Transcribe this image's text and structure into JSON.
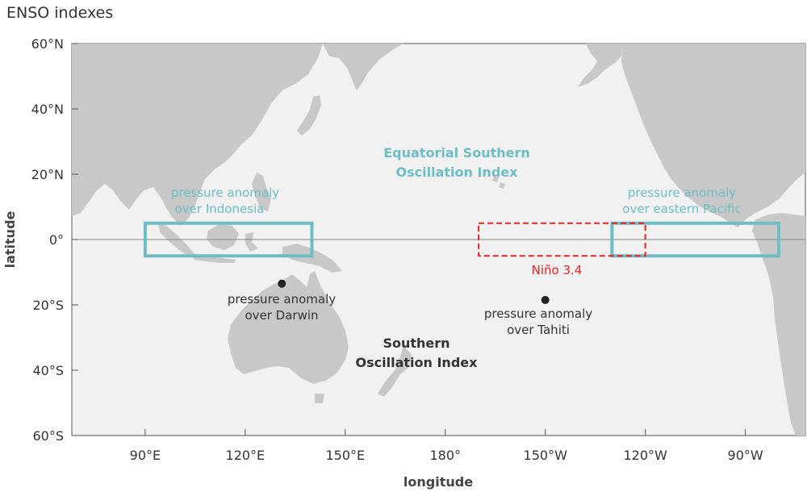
{
  "title": "ENSO indexes",
  "axes": {
    "xlabel": "longitude",
    "ylabel": "latitude",
    "x_ticks": [
      {
        "lon": 90,
        "label": "90°E"
      },
      {
        "lon": 120,
        "label": "120°E"
      },
      {
        "lon": 150,
        "label": "150°E"
      },
      {
        "lon": 180,
        "label": "180°"
      },
      {
        "lon": 210,
        "label": "150°W"
      },
      {
        "lon": 240,
        "label": "120°W"
      },
      {
        "lon": 270,
        "label": "90°W"
      }
    ],
    "y_ticks": [
      {
        "lat": 60,
        "label": "60°N"
      },
      {
        "lat": 40,
        "label": "40°N"
      },
      {
        "lat": 20,
        "label": "20°N"
      },
      {
        "lat": 0,
        "label": "0°"
      },
      {
        "lat": -20,
        "label": "20°S"
      },
      {
        "lat": -40,
        "label": "40°S"
      },
      {
        "lat": -60,
        "label": "60°S"
      }
    ],
    "lon_range": [
      68,
      288
    ],
    "lat_range": [
      -60,
      60
    ]
  },
  "regions": {
    "indonesia": {
      "lon": [
        90,
        140
      ],
      "lat": [
        -5,
        5
      ],
      "label_line1": "pressure anomaly",
      "label_line2": "over Indonesia"
    },
    "eastern_pacific": {
      "lon": [
        230,
        280
      ],
      "lat": [
        -5,
        5
      ],
      "label_line1": "pressure anomaly",
      "label_line2": "over eastern Pacific"
    },
    "nino34": {
      "lon": [
        190,
        240
      ],
      "lat": [
        -5,
        5
      ],
      "label": "Niño 3.4"
    }
  },
  "stations": {
    "darwin": {
      "lon": 131,
      "lat": -13.5,
      "label_line1": "pressure anomaly",
      "label_line2": "over Darwin"
    },
    "tahiti": {
      "lon": 210,
      "lat": -18.5,
      "label_line1": "pressure anomaly",
      "label_line2": "over Tahiti"
    }
  },
  "annotations": {
    "equatorial_soi_line1": "Equatorial Southern",
    "equatorial_soi_line2": "Oscillation Index",
    "soi_line1": "Southern",
    "soi_line2": "Oscillation Index"
  },
  "colors": {
    "ocean": "#f1f1f1",
    "land": "#c8c8c8",
    "teal": "#6dbdc6",
    "red": "#e8231f",
    "text": "#333333"
  }
}
